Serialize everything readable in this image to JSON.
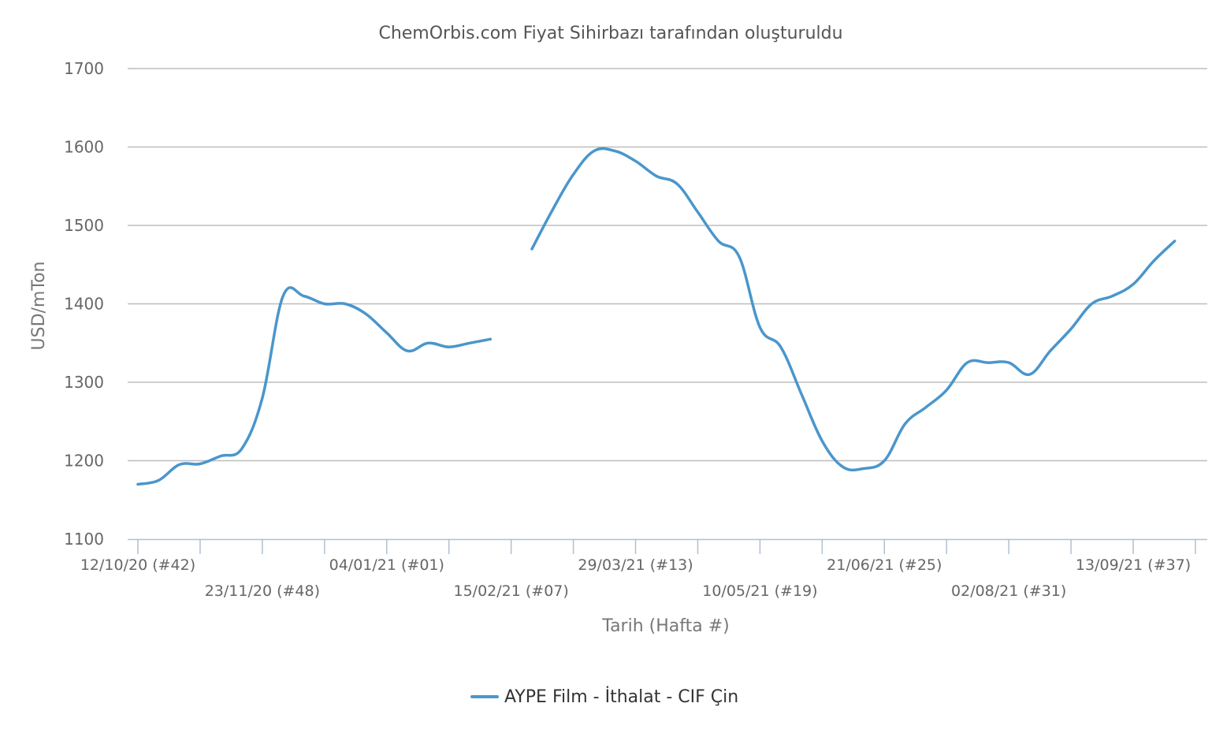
{
  "chart_data": {
    "type": "line",
    "title": "ChemOrbis.com Fiyat Sihirbazı tarafından oluşturuldu",
    "xlabel": "Tarih (Hafta #)",
    "ylabel": "USD/mTon",
    "ylim": [
      1100,
      1700
    ],
    "yticks": [
      1100,
      1200,
      1300,
      1400,
      1500,
      1600,
      1700
    ],
    "xlim": [
      41,
      96
    ],
    "grid": true,
    "legend_position": "bottom-center",
    "colors": {
      "series": "#4a96cc",
      "grid": "#bdbdbd",
      "text": "#666666"
    },
    "x_ticks": [
      {
        "x": 42,
        "label": "12/10/20 (#42)"
      },
      {
        "x": 45,
        "label": ""
      },
      {
        "x": 48,
        "label": "23/11/20 (#48)"
      },
      {
        "x": 51,
        "label": ""
      },
      {
        "x": 54,
        "label": "04/01/21 (#01)"
      },
      {
        "x": 57,
        "label": ""
      },
      {
        "x": 60,
        "label": "15/02/21 (#07)"
      },
      {
        "x": 63,
        "label": ""
      },
      {
        "x": 66,
        "label": "29/03/21 (#13)"
      },
      {
        "x": 69,
        "label": ""
      },
      {
        "x": 72,
        "label": "10/05/21 (#19)"
      },
      {
        "x": 75,
        "label": ""
      },
      {
        "x": 78,
        "label": "21/06/21 (#25)"
      },
      {
        "x": 81,
        "label": ""
      },
      {
        "x": 84,
        "label": "02/08/21 (#31)"
      },
      {
        "x": 87,
        "label": ""
      },
      {
        "x": 90,
        "label": "13/09/21 (#37)"
      },
      {
        "x": 93,
        "label": ""
      }
    ],
    "series": [
      {
        "name": "AYPE Film - İthalat  - CIF Çin",
        "color": "#4a96cc",
        "segments": [
          [
            [
              42,
              1170
            ],
            [
              43,
              1175
            ],
            [
              44,
              1195
            ],
            [
              45,
              1196
            ],
            [
              46,
              1206
            ],
            [
              47,
              1215
            ],
            [
              48,
              1280
            ],
            [
              49,
              1410
            ],
            [
              50,
              1410
            ],
            [
              51,
              1400
            ],
            [
              52,
              1400
            ],
            [
              53,
              1387
            ],
            [
              54,
              1363
            ],
            [
              55,
              1340
            ],
            [
              56,
              1350
            ],
            [
              57,
              1345
            ],
            [
              58,
              1350
            ],
            [
              59,
              1355
            ]
          ],
          [
            [
              61,
              1470
            ],
            [
              62,
              1520
            ],
            [
              63,
              1565
            ],
            [
              64,
              1595
            ],
            [
              65,
              1595
            ],
            [
              66,
              1582
            ],
            [
              67,
              1563
            ],
            [
              68,
              1553
            ],
            [
              69,
              1517
            ],
            [
              70,
              1480
            ],
            [
              71,
              1460
            ],
            [
              72,
              1370
            ],
            [
              73,
              1345
            ],
            [
              74,
              1285
            ],
            [
              75,
              1225
            ],
            [
              76,
              1192
            ],
            [
              77,
              1190
            ],
            [
              78,
              1200
            ],
            [
              79,
              1247
            ],
            [
              80,
              1268
            ],
            [
              81,
              1290
            ],
            [
              82,
              1325
            ],
            [
              83,
              1325
            ],
            [
              84,
              1325
            ],
            [
              85,
              1310
            ],
            [
              86,
              1340
            ],
            [
              87,
              1368
            ],
            [
              88,
              1400
            ],
            [
              89,
              1410
            ],
            [
              90,
              1425
            ],
            [
              91,
              1455
            ],
            [
              92,
              1480
            ]
          ]
        ]
      }
    ]
  }
}
